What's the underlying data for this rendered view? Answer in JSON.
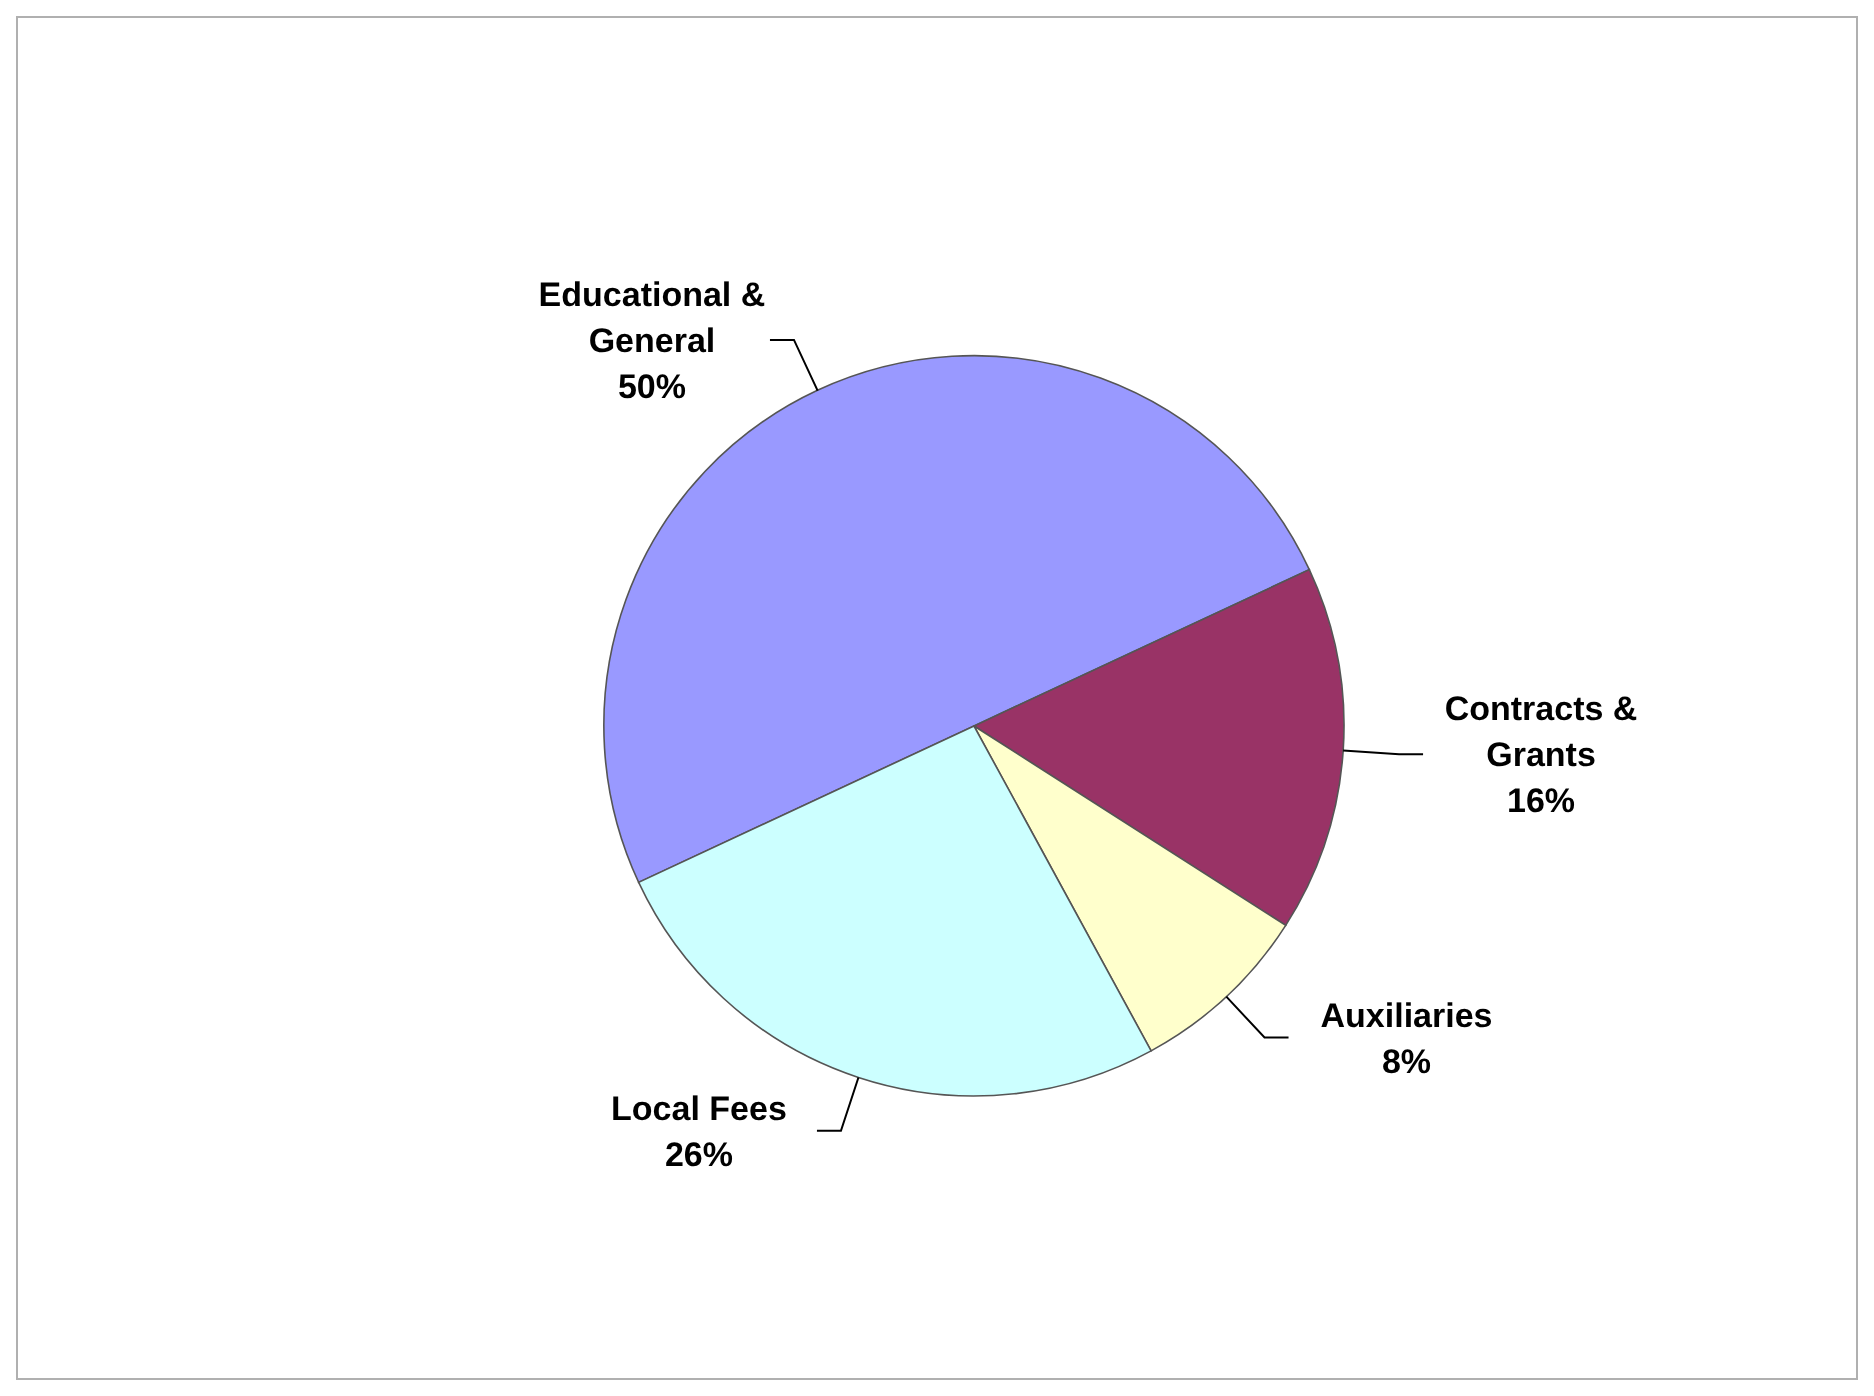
{
  "chart_data": {
    "type": "pie",
    "categories": [
      "Educational & General",
      "Contracts & Grants",
      "Auxiliaries",
      "Local Fees"
    ],
    "values": [
      50,
      16,
      8,
      26
    ],
    "value_labels": [
      "50%",
      "16%",
      "8%",
      "26%"
    ],
    "colors": [
      "#9999ff",
      "#993366",
      "#ffffcc",
      "#ccffff"
    ]
  }
}
